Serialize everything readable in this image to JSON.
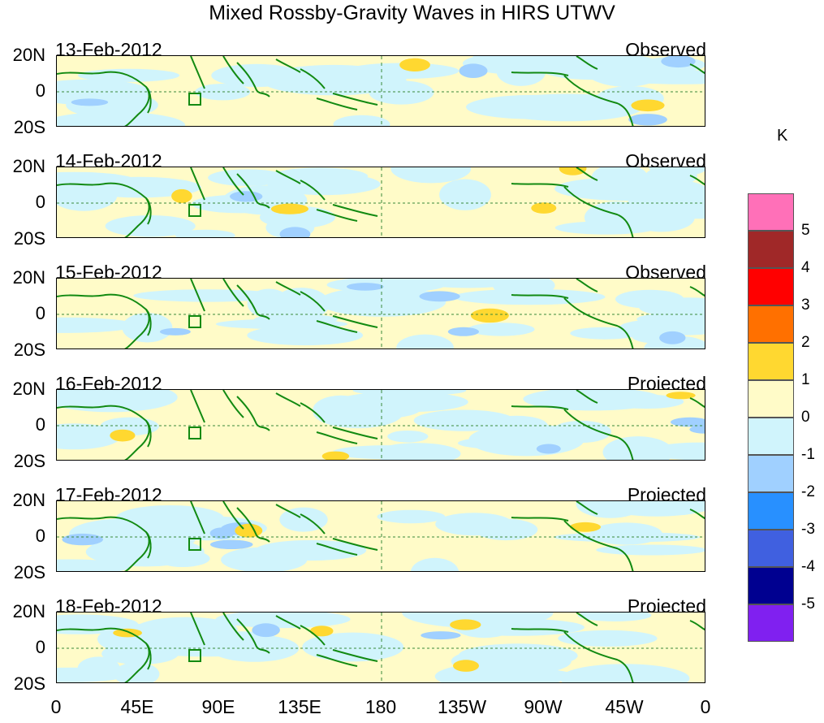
{
  "title": "Mixed Rossby-Gravity Waves in HIRS UTWV",
  "lat_labels": [
    "20N",
    "0",
    "20S"
  ],
  "lon_labels": [
    "0",
    "45E",
    "90E",
    "135E",
    "180",
    "135W",
    "90W",
    "45W",
    "0"
  ],
  "panels": [
    {
      "date": "13-Feb-2012",
      "status": "Observed"
    },
    {
      "date": "14-Feb-2012",
      "status": "Observed"
    },
    {
      "date": "15-Feb-2012",
      "status": "Observed"
    },
    {
      "date": "16-Feb-2012",
      "status": "Projected"
    },
    {
      "date": "17-Feb-2012",
      "status": "Projected"
    },
    {
      "date": "18-Feb-2012",
      "status": "Projected"
    }
  ],
  "legend": {
    "unit": "K",
    "colors": [
      "#ff70b8",
      "#a02828",
      "#ff0000",
      "#ff7000",
      "#ffd830",
      "#fffbc8",
      "#d0f4fc",
      "#a0d0ff",
      "#2890ff",
      "#4060e0",
      "#000090",
      "#8020f0"
    ],
    "tick_labels": [
      "5",
      "4",
      "3",
      "2",
      "1",
      "0",
      "-1",
      "-2",
      "-3",
      "-4",
      "-5"
    ]
  },
  "colors": {
    "coastline": "#128a12",
    "equator_line": "#3a8a3a",
    "positive_light": "#fffbc8",
    "positive_mid": "#ffd830",
    "negative_light": "#d0f4fc",
    "negative_mid": "#a0d0ff"
  }
}
